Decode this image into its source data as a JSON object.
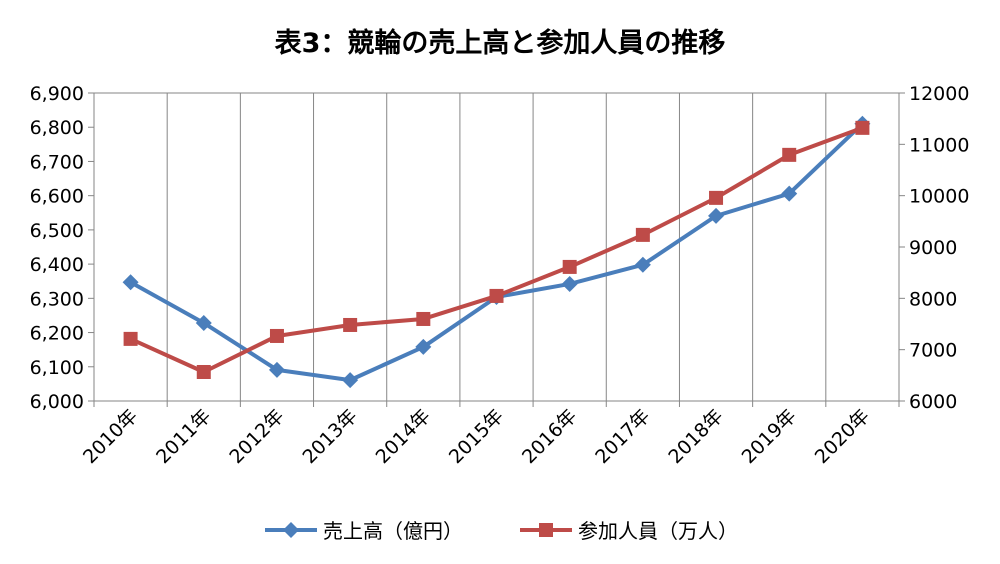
{
  "chart_data": {
    "type": "line",
    "title": "表3：競輪の売上高と参加人員の推移",
    "categories": [
      "2010年",
      "2011年",
      "2012年",
      "2013年",
      "2014年",
      "2015年",
      "2016年",
      "2017年",
      "2018年",
      "2019年",
      "2020年"
    ],
    "series": [
      {
        "name": "売上高（億円）",
        "axis": "left",
        "color": "#4a7ebb",
        "marker": "diamond",
        "values": [
          6347,
          6228,
          6091,
          6061,
          6158,
          6304,
          6342,
          6398,
          6541,
          6606,
          6810
        ]
      },
      {
        "name": "参加人員（万人）",
        "axis": "right",
        "color": "#be4b48",
        "marker": "square",
        "values": [
          7210,
          6565,
          7267,
          7481,
          7598,
          8047,
          8612,
          9236,
          9957,
          10795,
          11321
        ]
      }
    ],
    "y_left": {
      "range": [
        6000,
        6900
      ],
      "ticks": [
        "6,000",
        "6,100",
        "6,200",
        "6,300",
        "6,400",
        "6,500",
        "6,600",
        "6,700",
        "6,800",
        "6,900"
      ]
    },
    "y_right": {
      "range": [
        6000,
        12000
      ],
      "ticks": [
        "6000",
        "7000",
        "8000",
        "9000",
        "10000",
        "11000",
        "12000"
      ]
    },
    "grid": "vertical",
    "legend_position": "bottom"
  }
}
